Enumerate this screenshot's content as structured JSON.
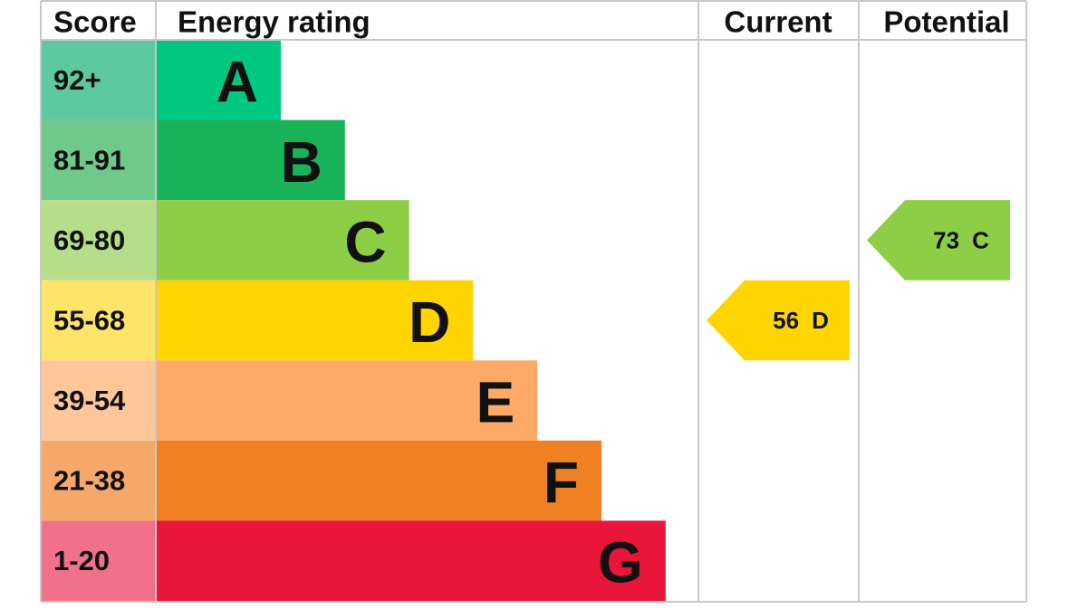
{
  "header": {
    "score": "Score",
    "energy_rating": "Energy rating",
    "current": "Current",
    "potential": "Potential"
  },
  "bands": [
    {
      "score": "92+",
      "rating": "A",
      "color": "#00c781",
      "score_color": "#5ec9a0"
    },
    {
      "score": "81-91",
      "rating": "B",
      "color": "#19b459",
      "score_color": "#6ec98a"
    },
    {
      "score": "69-80",
      "rating": "C",
      "color": "#8dce46",
      "score_color": "#b5dd8a"
    },
    {
      "score": "55-68",
      "rating": "D",
      "color": "#ffd500",
      "score_color": "#ffe46a"
    },
    {
      "score": "39-54",
      "rating": "E",
      "color": "#fcaa65",
      "score_color": "#fdc79a"
    },
    {
      "score": "21-38",
      "rating": "F",
      "color": "#ef8023",
      "score_color": "#f4a86a"
    },
    {
      "score": "1-20",
      "rating": "G",
      "color": "#e9153b",
      "score_color": "#f07189"
    }
  ],
  "current": {
    "score": 56,
    "rating": "D"
  },
  "potential": {
    "score": 73,
    "rating": "C"
  }
}
